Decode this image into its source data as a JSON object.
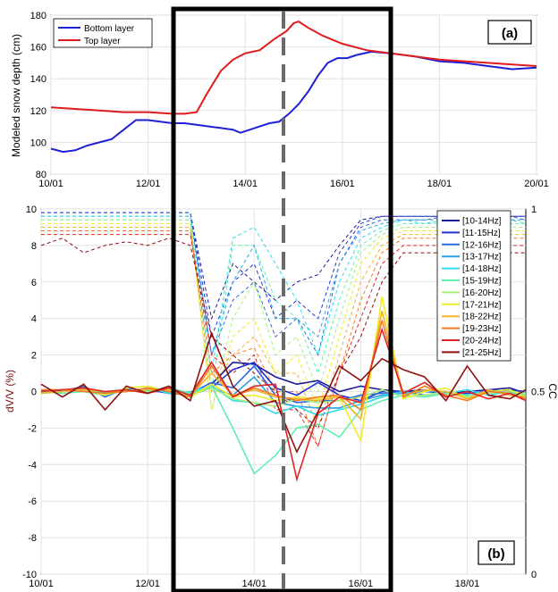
{
  "chart_data": [
    {
      "type": "line",
      "panel_label": "(a)",
      "title": "",
      "xlabel": "",
      "ylabel": "Modeled snow depth (cm)",
      "xlim": [
        0,
        10
      ],
      "ylim": [
        80,
        180
      ],
      "x_ticks": [
        "10/01",
        "12/01",
        "14/01",
        "16/01",
        "18/01",
        "20/01"
      ],
      "y_ticks": [
        "80",
        "100",
        "120",
        "140",
        "160",
        "180"
      ],
      "grid": true,
      "legend": "top-left",
      "series": [
        {
          "name": "Bottom layer",
          "color": "#1f1fd6",
          "points": [
            [
              0,
              96
            ],
            [
              0.25,
              94
            ],
            [
              0.5,
              95
            ],
            [
              0.75,
              98
            ],
            [
              1,
              100
            ],
            [
              1.25,
              102
            ],
            [
              1.5,
              108
            ],
            [
              1.75,
              114
            ],
            [
              2,
              114
            ],
            [
              2.25,
              113
            ],
            [
              2.5,
              112
            ],
            [
              2.75,
              112
            ],
            [
              3,
              111
            ],
            [
              3.25,
              110
            ],
            [
              3.5,
              109
            ],
            [
              3.75,
              108
            ],
            [
              3.9,
              106
            ],
            [
              4.1,
              108
            ],
            [
              4.3,
              110
            ],
            [
              4.5,
              112
            ],
            [
              4.7,
              113
            ],
            [
              4.9,
              118
            ],
            [
              5.1,
              124
            ],
            [
              5.3,
              132
            ],
            [
              5.5,
              142
            ],
            [
              5.7,
              150
            ],
            [
              5.9,
              153
            ],
            [
              6.1,
              153
            ],
            [
              6.3,
              155
            ],
            [
              6.6,
              157
            ],
            [
              7,
              156
            ],
            [
              7.5,
              154
            ],
            [
              8,
              151
            ],
            [
              8.5,
              150
            ],
            [
              9,
              148
            ],
            [
              9.5,
              146
            ],
            [
              10,
              147
            ]
          ]
        },
        {
          "name": "Top layer",
          "color": "#e01b1b",
          "points": [
            [
              0,
              122
            ],
            [
              0.5,
              121
            ],
            [
              1,
              120
            ],
            [
              1.5,
              119
            ],
            [
              2,
              119
            ],
            [
              2.5,
              118
            ],
            [
              2.75,
              118
            ],
            [
              3,
              119
            ],
            [
              3.2,
              130
            ],
            [
              3.5,
              145
            ],
            [
              3.75,
              152
            ],
            [
              4,
              156
            ],
            [
              4.3,
              158
            ],
            [
              4.6,
              165
            ],
            [
              4.85,
              170
            ],
            [
              5,
              175
            ],
            [
              5.1,
              176
            ],
            [
              5.3,
              172
            ],
            [
              5.6,
              167
            ],
            [
              6,
              162
            ],
            [
              6.5,
              158
            ],
            [
              7,
              156
            ],
            [
              7.5,
              154
            ],
            [
              8,
              152
            ],
            [
              8.5,
              151
            ],
            [
              9,
              150
            ],
            [
              9.5,
              149
            ],
            [
              10,
              148
            ]
          ]
        }
      ]
    },
    {
      "type": "line",
      "panel_label": "(b)",
      "title": "",
      "xlabel": "",
      "ylabel": "dV/V (%)",
      "y2label": "CC",
      "xlim": [
        0,
        9.1
      ],
      "ylim": [
        -10,
        10
      ],
      "y2lim": [
        0,
        1
      ],
      "x_ticks": [
        "10/01",
        "12/01",
        "14/01",
        "16/01",
        "18/01"
      ],
      "y_ticks": [
        "-10",
        "-8",
        "-6",
        "-4",
        "-2",
        "0",
        "2",
        "4",
        "6",
        "8",
        "10"
      ],
      "y2_ticks": [
        "0",
        "0.5",
        "1"
      ],
      "grid": true,
      "legend": "right",
      "dvv_x": [
        0,
        0.4,
        0.8,
        1.2,
        1.6,
        2,
        2.4,
        2.8,
        3.2,
        3.6,
        4,
        4.4,
        4.8,
        5.2,
        5.6,
        6,
        6.4,
        6.8,
        7.2,
        7.6,
        8,
        8.4,
        8.8,
        9.1
      ],
      "series": [
        {
          "name": "[10-14Hz]",
          "color": "#1a1a9c",
          "dvv": [
            0.1,
            0,
            0.2,
            -0.1,
            0.1,
            0,
            0,
            -0.3,
            0.4,
            1.6,
            1.5,
            0.8,
            0.4,
            0.6,
            0,
            0.3,
            0.1,
            0,
            0.1,
            -0.1,
            0,
            0.1,
            0.2,
            -0.1
          ],
          "cc": [
            0.99,
            0.99,
            0.99,
            0.99,
            0.99,
            0.99,
            0.99,
            0.99,
            0.7,
            0.85,
            0.8,
            0.75,
            0.8,
            0.82,
            0.9,
            0.97,
            0.98,
            0.98,
            0.98,
            0.98,
            0.98,
            0.98,
            0.98,
            0.98
          ]
        },
        {
          "name": "[11-15Hz]",
          "color": "#2233d0",
          "dvv": [
            0,
            0.1,
            0.1,
            0,
            0,
            0.1,
            -0.1,
            -0.2,
            0.2,
            1.2,
            1.6,
            0.2,
            -0.2,
            0.5,
            -0.2,
            -0.5,
            0,
            0,
            0,
            -0.1,
            -0.1,
            0,
            0.1,
            0
          ],
          "cc": [
            0.99,
            0.99,
            0.99,
            0.99,
            0.99,
            0.99,
            0.99,
            0.99,
            0.65,
            0.8,
            0.85,
            0.7,
            0.75,
            0.7,
            0.88,
            0.96,
            0.98,
            0.98,
            0.98,
            0.98,
            0.98,
            0.98,
            0.98,
            0.98
          ]
        },
        {
          "name": "[12-16Hz]",
          "color": "#2a6ae0",
          "dvv": [
            -0.1,
            0,
            0.3,
            -0.3,
            0.2,
            0,
            0.2,
            -0.1,
            0.5,
            0.2,
            1.4,
            -0.2,
            -0.6,
            -0.5,
            -0.5,
            -0.2,
            -0.1,
            0,
            -0.2,
            0,
            -0.2,
            0.1,
            0,
            -0.1
          ],
          "cc": [
            0.99,
            0.99,
            0.99,
            0.99,
            0.99,
            0.99,
            0.99,
            0.99,
            0.6,
            0.75,
            0.8,
            0.65,
            0.7,
            0.6,
            0.85,
            0.95,
            0.97,
            0.97,
            0.97,
            0.98,
            0.98,
            0.97,
            0.98,
            0.97
          ]
        },
        {
          "name": "[13-17Hz]",
          "color": "#2aa2e6",
          "dvv": [
            0,
            0.1,
            0,
            -0.2,
            0.1,
            0.1,
            0,
            -0.2,
            0.2,
            -0.2,
            0.8,
            -0.6,
            -0.8,
            -0.9,
            -0.9,
            -0.5,
            -0.2,
            -0.1,
            0,
            0,
            -0.2,
            0,
            -0.1,
            0
          ],
          "cc": [
            0.98,
            0.98,
            0.98,
            0.98,
            0.98,
            0.98,
            0.98,
            0.98,
            0.6,
            0.8,
            0.9,
            0.7,
            0.7,
            0.65,
            0.85,
            0.94,
            0.96,
            0.97,
            0.97,
            0.97,
            0.97,
            0.97,
            0.97,
            0.97
          ]
        },
        {
          "name": "[14-18Hz]",
          "color": "#30dcea",
          "dvv": [
            -0.1,
            0,
            0.1,
            -0.1,
            0,
            0.2,
            -0.1,
            0,
            0.3,
            -0.5,
            -0.6,
            -1.2,
            -0.8,
            -1.3,
            -1,
            -0.7,
            -0.3,
            0,
            -0.3,
            -0.1,
            0.1,
            -0.2,
            0,
            -0.2
          ],
          "cc": [
            0.98,
            0.98,
            0.98,
            0.98,
            0.98,
            0.98,
            0.98,
            0.98,
            0.55,
            0.92,
            0.95,
            0.85,
            0.75,
            0.6,
            0.8,
            0.92,
            0.95,
            0.97,
            0.96,
            0.97,
            0.97,
            0.96,
            0.97,
            0.96
          ]
        },
        {
          "name": "[15-19Hz]",
          "color": "#5ef0b0",
          "dvv": [
            0,
            -0.1,
            0,
            -0.2,
            0.1,
            0,
            0.2,
            -0.1,
            0.3,
            -2,
            -4.5,
            -3.5,
            -2,
            -1.8,
            -2.5,
            -1,
            -0.5,
            -0.2,
            -0.3,
            -0.1,
            -0.2,
            0,
            -0.1,
            -0.2
          ],
          "cc": [
            0.97,
            0.97,
            0.97,
            0.97,
            0.97,
            0.97,
            0.97,
            0.97,
            0.5,
            0.9,
            0.9,
            0.75,
            0.7,
            0.55,
            0.75,
            0.9,
            0.94,
            0.96,
            0.96,
            0.96,
            0.96,
            0.96,
            0.96,
            0.96
          ]
        },
        {
          "name": "[16-20Hz]",
          "color": "#a6f07a",
          "dvv": [
            -0.1,
            0,
            0.2,
            0,
            0.1,
            0,
            0.1,
            -0.2,
            0.2,
            -0.4,
            -0.6,
            -0.8,
            -0.4,
            -0.6,
            -0.5,
            -0.3,
            0.1,
            -0.3,
            -0.2,
            0,
            -0.3,
            -0.1,
            0,
            -0.1
          ],
          "cc": [
            0.97,
            0.97,
            0.97,
            0.97,
            0.97,
            0.97,
            0.97,
            0.97,
            0.45,
            0.7,
            0.8,
            0.6,
            0.65,
            0.5,
            0.7,
            0.88,
            0.93,
            0.95,
            0.95,
            0.95,
            0.95,
            0.95,
            0.95,
            0.95
          ]
        },
        {
          "name": "[17-21Hz]",
          "color": "#ecec28",
          "dvv": [
            0,
            0.1,
            0.1,
            -0.2,
            0.2,
            0.3,
            0,
            -0.3,
            0.4,
            -0.3,
            -0.2,
            -0.5,
            -0.3,
            -0.4,
            -0.3,
            -2.7,
            5.2,
            -0.4,
            0,
            0.2,
            -0.4,
            0,
            0.1,
            -0.3
          ],
          "cc": [
            0.96,
            0.96,
            0.96,
            0.96,
            0.96,
            0.96,
            0.96,
            0.96,
            0.45,
            0.65,
            0.7,
            0.55,
            0.6,
            0.45,
            0.65,
            0.85,
            0.92,
            0.94,
            0.94,
            0.94,
            0.94,
            0.94,
            0.94,
            0.94
          ]
        },
        {
          "name": "[18-22Hz]",
          "color": "#f4b228",
          "dvv": [
            -0.1,
            0,
            0.1,
            0,
            0,
            0.1,
            0.1,
            -0.2,
            1,
            -0.2,
            0.1,
            -0.3,
            -0.4,
            -0.5,
            -0.3,
            -1.5,
            4.4,
            -0.2,
            0.1,
            0,
            -0.4,
            0.1,
            -0.2,
            -0.3
          ],
          "cc": [
            0.95,
            0.95,
            0.95,
            0.95,
            0.95,
            0.95,
            0.95,
            0.95,
            0.5,
            0.6,
            0.65,
            0.55,
            0.55,
            0.4,
            0.6,
            0.8,
            0.9,
            0.93,
            0.93,
            0.93,
            0.93,
            0.93,
            0.93,
            0.93
          ]
        },
        {
          "name": "[19-23Hz]",
          "color": "#f27c22",
          "dvv": [
            0.1,
            0.1,
            0,
            -0.1,
            0,
            0.2,
            0,
            -0.3,
            1.4,
            -0.3,
            0.2,
            -0.2,
            -0.5,
            -0.3,
            -0.2,
            -1,
            3.9,
            -0.3,
            0.3,
            -0.2,
            -0.5,
            0,
            -0.1,
            -0.4
          ],
          "cc": [
            0.94,
            0.94,
            0.94,
            0.94,
            0.94,
            0.94,
            0.94,
            0.94,
            0.55,
            0.6,
            0.62,
            0.5,
            0.5,
            0.35,
            0.55,
            0.75,
            0.88,
            0.92,
            0.92,
            0.92,
            0.92,
            0.92,
            0.92,
            0.92
          ]
        },
        {
          "name": "[20-24Hz]",
          "color": "#e02424",
          "dvv": [
            0,
            0.1,
            0.2,
            0,
            0.1,
            -0.1,
            0.2,
            -0.2,
            1.6,
            -0.3,
            0.3,
            0.4,
            -4.8,
            -1.2,
            -0.3,
            -0.6,
            3.4,
            -0.1,
            0.5,
            -0.3,
            0,
            -0.4,
            -0.1,
            -0.5
          ],
          "cc": [
            0.93,
            0.93,
            0.93,
            0.93,
            0.93,
            0.93,
            0.93,
            0.93,
            0.6,
            0.55,
            0.6,
            0.45,
            0.45,
            0.35,
            0.55,
            0.7,
            0.85,
            0.9,
            0.9,
            0.9,
            0.9,
            0.9,
            0.9,
            0.9
          ]
        },
        {
          "name": "[21-25Hz]",
          "color": "#8e1010",
          "dvv": [
            0.4,
            -0.3,
            0.4,
            -1,
            0.3,
            -0.1,
            0.3,
            -0.5,
            3.2,
            0.3,
            -0.8,
            -0.5,
            -3.3,
            -1.1,
            1.4,
            0.6,
            1.8,
            1.2,
            0.8,
            -0.5,
            1.4,
            -0.2,
            -0.4,
            0.1
          ],
          "cc": [
            0.9,
            0.92,
            0.88,
            0.9,
            0.91,
            0.9,
            0.92,
            0.9,
            0.65,
            0.6,
            0.55,
            0.5,
            0.45,
            0.4,
            0.55,
            0.65,
            0.8,
            0.88,
            0.88,
            0.88,
            0.88,
            0.88,
            0.88,
            0.88
          ]
        }
      ]
    }
  ]
}
